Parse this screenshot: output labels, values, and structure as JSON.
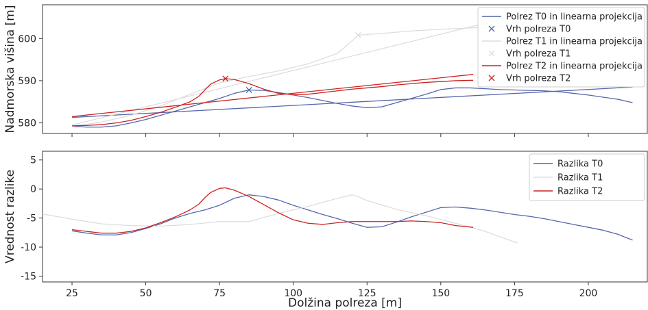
{
  "chart_data": [
    {
      "type": "line",
      "xlabel": "",
      "ylabel": "Nadmorska višina [m]",
      "xlim": [
        15,
        220
      ],
      "ylim": [
        577.5,
        608
      ],
      "xticks": [
        25,
        50,
        75,
        100,
        125,
        150,
        175,
        200
      ],
      "yticks": [
        580,
        590,
        600
      ],
      "legend_position": "top-right",
      "grid": false,
      "series": [
        {
          "name": "Polrez T0 in linearna projekcija",
          "color": "#5566aa",
          "kind": "line",
          "x": [
            25,
            30,
            35,
            40,
            45,
            50,
            55,
            60,
            65,
            70,
            75,
            80,
            85,
            90,
            95,
            100,
            105,
            110,
            115,
            120,
            125,
            130,
            135,
            140,
            145,
            150,
            155,
            160,
            165,
            170,
            175,
            180,
            185,
            190,
            195,
            200,
            205,
            210,
            215
          ],
          "y": [
            579.2,
            579.0,
            579.0,
            579.3,
            580.0,
            580.8,
            581.8,
            582.8,
            583.8,
            584.8,
            585.8,
            587.0,
            587.8,
            587.7,
            587.2,
            586.6,
            586.0,
            585.3,
            584.6,
            584.0,
            583.6,
            583.8,
            584.8,
            585.8,
            586.8,
            587.9,
            588.3,
            588.3,
            588.1,
            587.9,
            587.8,
            587.7,
            587.6,
            587.4,
            587.0,
            586.6,
            586.1,
            585.6,
            584.8
          ]
        },
        {
          "name": "Vrh polreza T0",
          "color": "#5566aa",
          "kind": "marker",
          "x": [
            85
          ],
          "y": [
            587.8
          ]
        },
        {
          "name": "T0 linearna projekcija",
          "color": "#5566aa",
          "kind": "line",
          "legend": false,
          "x": [
            25,
            215
          ],
          "y": [
            581.3,
            588.5
          ]
        },
        {
          "name": "Polrez T1 in linearna projekcija",
          "color": "#dddddd",
          "kind": "line",
          "x": [
            25,
            35,
            45,
            55,
            65,
            75,
            85,
            95,
            105,
            115,
            120,
            122,
            130,
            140,
            150,
            160,
            170,
            176
          ],
          "y": [
            579.2,
            580.2,
            581.8,
            584.0,
            586.8,
            589.5,
            591.0,
            592.3,
            594.0,
            596.5,
            599.5,
            600.8,
            601.2,
            601.8,
            602.2,
            602.5,
            602.8,
            603.0
          ]
        },
        {
          "name": "Vrh polreza T1",
          "color": "#dddddd",
          "kind": "marker",
          "x": [
            122
          ],
          "y": [
            600.8
          ]
        },
        {
          "name": "T1 linearna projekcija",
          "color": "#dddddd",
          "kind": "line",
          "legend": false,
          "x": [
            25,
            176
          ],
          "y": [
            579.5,
            605.5
          ]
        },
        {
          "name": "Polrez T2 in linearna projekcija",
          "color": "#cc2222",
          "kind": "line",
          "x": [
            25,
            30,
            35,
            40,
            45,
            50,
            55,
            60,
            65,
            68,
            70,
            72,
            75,
            77,
            80,
            85,
            90,
            95,
            100,
            105,
            110,
            115,
            120,
            125,
            130,
            135,
            140,
            145,
            150,
            155,
            161
          ],
          "y": [
            579.3,
            579.4,
            579.6,
            580.0,
            580.6,
            581.5,
            582.5,
            583.7,
            585.0,
            586.3,
            587.8,
            589.2,
            590.2,
            590.5,
            590.3,
            589.3,
            588.0,
            587.0,
            586.7,
            586.8,
            587.2,
            587.6,
            588.0,
            588.3,
            588.6,
            589.0,
            589.3,
            589.6,
            589.8,
            590.0,
            590.1
          ]
        },
        {
          "name": "Vrh polreza T2",
          "color": "#cc2222",
          "kind": "marker",
          "x": [
            77
          ],
          "y": [
            590.5
          ]
        },
        {
          "name": "T2 linearna projekcija",
          "color": "#cc2222",
          "kind": "line",
          "legend": false,
          "x": [
            25,
            161
          ],
          "y": [
            581.5,
            591.5
          ]
        }
      ]
    },
    {
      "type": "line",
      "xlabel": "Dolžina polreza [m]",
      "ylabel": "Vrednost razlike",
      "xlim": [
        15,
        220
      ],
      "ylim": [
        -16,
        6.5
      ],
      "xticks": [
        25,
        50,
        75,
        100,
        125,
        150,
        175,
        200
      ],
      "yticks": [
        5,
        0,
        -5,
        -10,
        -15
      ],
      "legend_position": "top-right",
      "grid": false,
      "series": [
        {
          "name": "Razlika T0",
          "color": "#5566aa",
          "x": [
            25,
            30,
            35,
            40,
            45,
            50,
            55,
            60,
            65,
            70,
            75,
            80,
            85,
            90,
            95,
            100,
            105,
            110,
            115,
            120,
            125,
            130,
            135,
            140,
            145,
            150,
            155,
            160,
            165,
            170,
            175,
            180,
            185,
            190,
            195,
            200,
            205,
            210,
            215
          ],
          "y": [
            -7.2,
            -7.6,
            -7.9,
            -7.9,
            -7.5,
            -6.8,
            -6.0,
            -5.0,
            -4.2,
            -3.6,
            -2.8,
            -1.6,
            -1.0,
            -1.3,
            -1.9,
            -2.8,
            -3.6,
            -4.4,
            -5.1,
            -5.9,
            -6.6,
            -6.5,
            -5.7,
            -4.8,
            -4.0,
            -3.2,
            -3.1,
            -3.3,
            -3.6,
            -4.0,
            -4.4,
            -4.7,
            -5.1,
            -5.6,
            -6.1,
            -6.6,
            -7.1,
            -7.8,
            -8.8
          ]
        },
        {
          "name": "Razlika T1",
          "color": "#dddddd",
          "x": [
            15,
            25,
            35,
            45,
            55,
            65,
            75,
            85,
            95,
            105,
            115,
            120,
            122,
            125,
            135,
            145,
            155,
            165,
            176
          ],
          "y": [
            -4.3,
            -5.2,
            -6.0,
            -6.3,
            -6.4,
            -6.1,
            -5.6,
            -5.6,
            -4.2,
            -3.0,
            -1.6,
            -1.0,
            -1.3,
            -2.0,
            -3.5,
            -4.6,
            -5.9,
            -7.3,
            -9.3
          ]
        },
        {
          "name": "Razlika T2",
          "color": "#cc2222",
          "x": [
            25,
            30,
            35,
            40,
            45,
            50,
            55,
            60,
            65,
            68,
            70,
            72,
            75,
            77,
            80,
            85,
            90,
            95,
            100,
            105,
            110,
            115,
            120,
            125,
            130,
            135,
            140,
            145,
            150,
            155,
            161
          ],
          "y": [
            -7.0,
            -7.3,
            -7.6,
            -7.6,
            -7.3,
            -6.7,
            -5.8,
            -4.8,
            -3.6,
            -2.6,
            -1.5,
            -0.6,
            0.1,
            0.2,
            -0.2,
            -1.3,
            -2.7,
            -4.1,
            -5.3,
            -5.9,
            -6.1,
            -5.8,
            -5.6,
            -5.6,
            -5.6,
            -5.6,
            -5.5,
            -5.6,
            -5.8,
            -6.3,
            -6.6
          ]
        }
      ]
    }
  ]
}
